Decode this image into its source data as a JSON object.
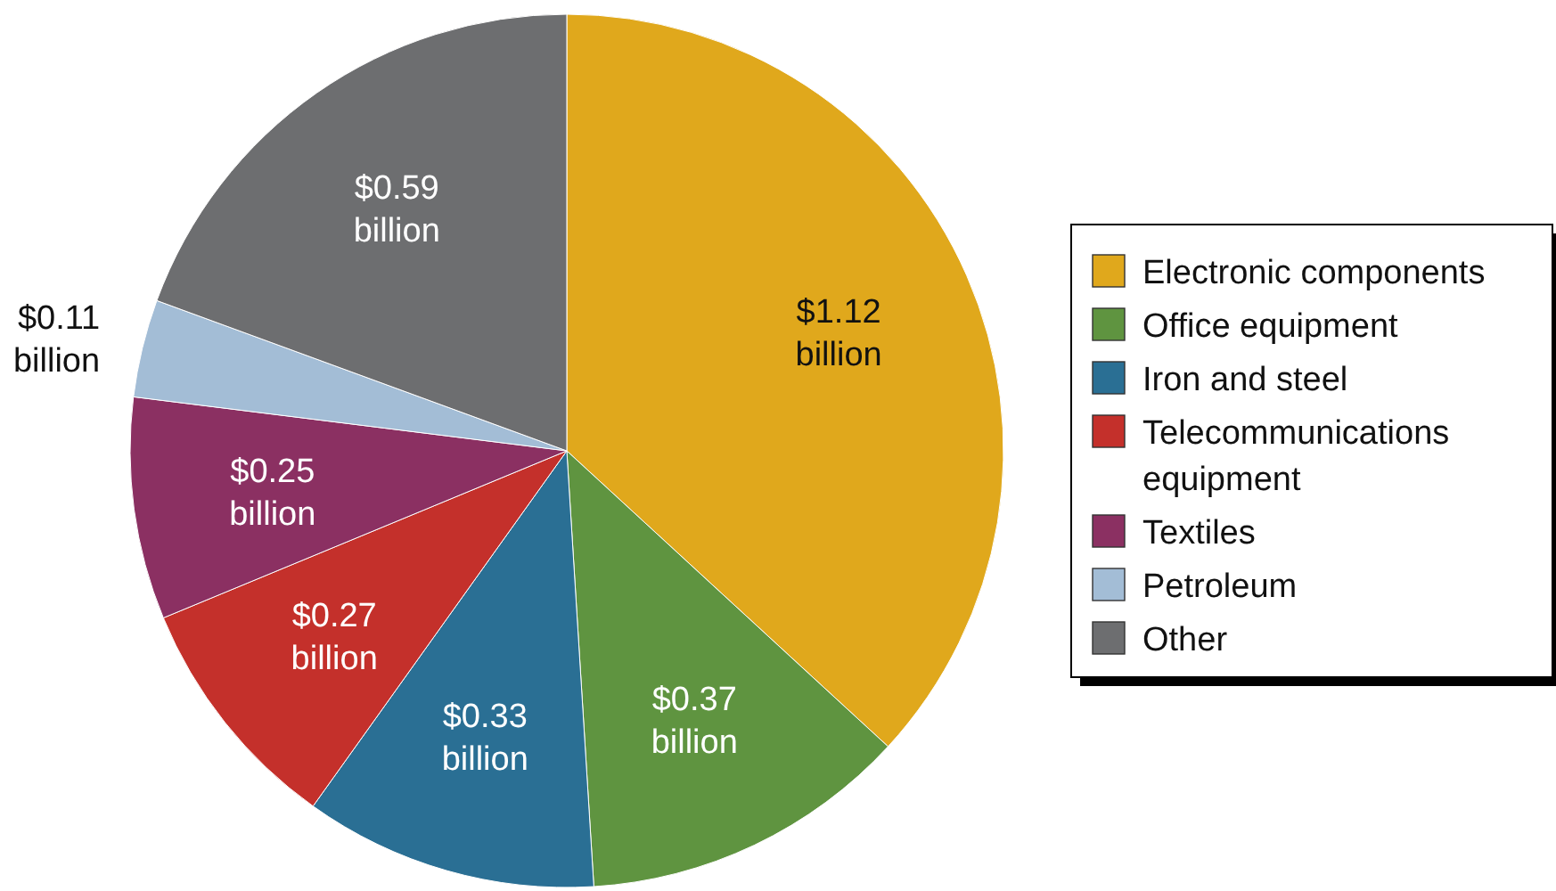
{
  "chart_data": {
    "type": "pie",
    "categories": [
      "Electronic components",
      "Office equipment",
      "Iron and steel",
      "Telecommunications equipment",
      "Textiles",
      "Petroleum",
      "Other"
    ],
    "values": [
      1.12,
      0.37,
      0.33,
      0.27,
      0.25,
      0.11,
      0.59
    ],
    "colors": [
      "#e0a81c",
      "#5f9440",
      "#2a6f94",
      "#c4302b",
      "#8b3062",
      "#a3bdd6",
      "#6d6e70"
    ],
    "value_labels": [
      "$1.12 billion",
      "$0.37 billion",
      "$0.33 billion",
      "$0.27 billion",
      "$0.25 billion",
      "$0.11 billion",
      "$0.59 billion"
    ],
    "legend": "right"
  }
}
